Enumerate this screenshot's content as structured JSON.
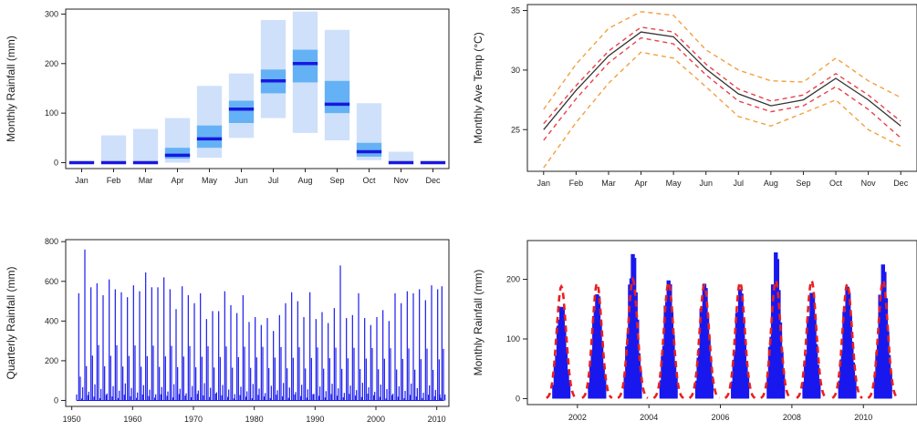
{
  "chart_data": [
    {
      "type": "bar",
      "ylabel": "Monthly Rainfall (mm)",
      "xlabel": "",
      "categories": [
        "Jan",
        "Feb",
        "Mar",
        "Apr",
        "May",
        "Jun",
        "Jul",
        "Aug",
        "Sep",
        "Oct",
        "Nov",
        "Dec"
      ],
      "ylim": [
        -12,
        310
      ],
      "yticks": [
        0,
        100,
        200,
        300
      ],
      "series": [
        {
          "role": "outer range",
          "lower": [
            0,
            0,
            0,
            0,
            10,
            50,
            90,
            60,
            45,
            5,
            0,
            0
          ],
          "upper": [
            0,
            55,
            68,
            90,
            155,
            180,
            288,
            305,
            268,
            120,
            22,
            0
          ]
        },
        {
          "role": "inner range",
          "lower": [
            0,
            0,
            0,
            8,
            30,
            80,
            140,
            162,
            100,
            12,
            0,
            0
          ],
          "upper": [
            0,
            0,
            0,
            30,
            75,
            125,
            188,
            228,
            165,
            40,
            0,
            0
          ]
        },
        {
          "role": "median",
          "values": [
            0,
            0,
            0,
            15,
            48,
            108,
            165,
            200,
            118,
            22,
            0,
            0
          ]
        }
      ],
      "colors": {
        "outer": "#cfe0fb",
        "inner": "#64b2f5",
        "median": "#1818e0"
      }
    },
    {
      "type": "line",
      "ylabel": "Monthly Ave Temp (°C)",
      "xlabel": "",
      "categories": [
        "Jan",
        "Feb",
        "Mar",
        "Apr",
        "May",
        "Jun",
        "Jul",
        "Aug",
        "Sep",
        "Oct",
        "Nov",
        "Dec"
      ],
      "ylim": [
        21.5,
        35.5
      ],
      "yticks": [
        25,
        30,
        35
      ],
      "series": [
        {
          "role": "mean",
          "values": [
            25.0,
            28.3,
            31.2,
            33.2,
            32.8,
            30.1,
            28.0,
            27.0,
            27.5,
            29.3,
            27.5,
            25.3
          ],
          "color": "#333333",
          "style": "solid"
        },
        {
          "role": "inner band upper",
          "values": [
            25.5,
            28.7,
            31.6,
            33.6,
            33.2,
            30.5,
            28.4,
            27.4,
            27.9,
            29.7,
            27.9,
            25.7
          ],
          "color": "#e8424a",
          "style": "dashed"
        },
        {
          "role": "inner band lower",
          "values": [
            24.1,
            27.6,
            30.6,
            32.7,
            32.2,
            29.6,
            27.4,
            26.5,
            27.0,
            28.6,
            26.7,
            24.3
          ],
          "color": "#e8424a",
          "style": "dashed"
        },
        {
          "role": "outer band upper",
          "values": [
            26.7,
            30.5,
            33.5,
            34.9,
            34.6,
            31.7,
            30.0,
            29.1,
            29.0,
            31.0,
            29.1,
            27.7
          ],
          "color": "#f2a040",
          "style": "dashed"
        },
        {
          "role": "outer band lower",
          "values": [
            21.8,
            25.6,
            28.9,
            31.5,
            31.0,
            28.6,
            26.1,
            25.3,
            26.4,
            27.5,
            25.0,
            23.6
          ],
          "color": "#f2a040",
          "style": "dashed"
        }
      ]
    },
    {
      "type": "bar",
      "ylabel": "Quarterly Rainfall (mm)",
      "xlabel": "",
      "xlim": [
        1949,
        2012
      ],
      "xticks": [
        1950,
        1960,
        1970,
        1980,
        1990,
        2000,
        2010
      ],
      "ylim": [
        -30,
        810
      ],
      "yticks": [
        0,
        200,
        400,
        600,
        800
      ],
      "color": "#1a1aee",
      "wet_season_peaks": [
        {
          "year": 1951,
          "value": 540
        },
        {
          "year": 1952,
          "value": 760
        },
        {
          "year": 1953,
          "value": 570
        },
        {
          "year": 1954,
          "value": 590
        },
        {
          "year": 1955,
          "value": 530
        },
        {
          "year": 1956,
          "value": 610
        },
        {
          "year": 1957,
          "value": 560
        },
        {
          "year": 1958,
          "value": 545
        },
        {
          "year": 1959,
          "value": 520
        },
        {
          "year": 1960,
          "value": 580
        },
        {
          "year": 1961,
          "value": 550
        },
        {
          "year": 1962,
          "value": 645
        },
        {
          "year": 1963,
          "value": 570
        },
        {
          "year": 1964,
          "value": 570
        },
        {
          "year": 1965,
          "value": 620
        },
        {
          "year": 1966,
          "value": 560
        },
        {
          "year": 1967,
          "value": 460
        },
        {
          "year": 1968,
          "value": 575
        },
        {
          "year": 1969,
          "value": 530
        },
        {
          "year": 1970,
          "value": 490
        },
        {
          "year": 1971,
          "value": 540
        },
        {
          "year": 1972,
          "value": 410
        },
        {
          "year": 1973,
          "value": 450
        },
        {
          "year": 1974,
          "value": 450
        },
        {
          "year": 1975,
          "value": 550
        },
        {
          "year": 1976,
          "value": 480
        },
        {
          "year": 1977,
          "value": 440
        },
        {
          "year": 1978,
          "value": 530
        },
        {
          "year": 1979,
          "value": 395
        },
        {
          "year": 1980,
          "value": 420
        },
        {
          "year": 1981,
          "value": 380
        },
        {
          "year": 1982,
          "value": 415
        },
        {
          "year": 1983,
          "value": 350
        },
        {
          "year": 1984,
          "value": 430
        },
        {
          "year": 1985,
          "value": 490
        },
        {
          "year": 1986,
          "value": 545
        },
        {
          "year": 1987,
          "value": 500
        },
        {
          "year": 1988,
          "value": 420
        },
        {
          "year": 1989,
          "value": 545
        },
        {
          "year": 1990,
          "value": 410
        },
        {
          "year": 1991,
          "value": 445
        },
        {
          "year": 1992,
          "value": 390
        },
        {
          "year": 1993,
          "value": 465
        },
        {
          "year": 1994,
          "value": 680
        },
        {
          "year": 1995,
          "value": 415
        },
        {
          "year": 1996,
          "value": 430
        },
        {
          "year": 1997,
          "value": 540
        },
        {
          "year": 1998,
          "value": 415
        },
        {
          "year": 1999,
          "value": 380
        },
        {
          "year": 2000,
          "value": 420
        },
        {
          "year": 2001,
          "value": 455
        },
        {
          "year": 2002,
          "value": 400
        },
        {
          "year": 2003,
          "value": 540
        },
        {
          "year": 2004,
          "value": 490
        },
        {
          "year": 2005,
          "value": 550
        },
        {
          "year": 2006,
          "value": 540
        },
        {
          "year": 2007,
          "value": 560
        },
        {
          "year": 2008,
          "value": 505
        },
        {
          "year": 2009,
          "value": 580
        },
        {
          "year": 2010,
          "value": 560
        },
        {
          "year": 2010.7,
          "value": 575
        }
      ]
    },
    {
      "type": "bar",
      "ylabel": "Monthly Rainfall (mm)",
      "xlabel": "",
      "xlim": [
        2000.6,
        2011.5
      ],
      "xticks": [
        2002,
        2004,
        2006,
        2008,
        2010
      ],
      "ylim": [
        -10,
        265
      ],
      "yticks": [
        0,
        100,
        200
      ],
      "bar_color": "#1818ee",
      "fit_color": "#e82020",
      "wet_seasons": [
        {
          "center": 2001.55,
          "peak": 162,
          "fit_peak": 188
        },
        {
          "center": 2002.55,
          "peak": 183,
          "fit_peak": 193
        },
        {
          "center": 2003.55,
          "peak": 252,
          "fit_peak": 200
        },
        {
          "center": 2004.55,
          "peak": 205,
          "fit_peak": 195
        },
        {
          "center": 2005.55,
          "peak": 198,
          "fit_peak": 190
        },
        {
          "center": 2006.55,
          "peak": 188,
          "fit_peak": 195
        },
        {
          "center": 2007.55,
          "peak": 250,
          "fit_peak": 198
        },
        {
          "center": 2008.55,
          "peak": 180,
          "fit_peak": 198
        },
        {
          "center": 2009.55,
          "peak": 190,
          "fit_peak": 192
        },
        {
          "center": 2010.55,
          "peak": 227,
          "fit_peak": 198
        }
      ]
    }
  ]
}
